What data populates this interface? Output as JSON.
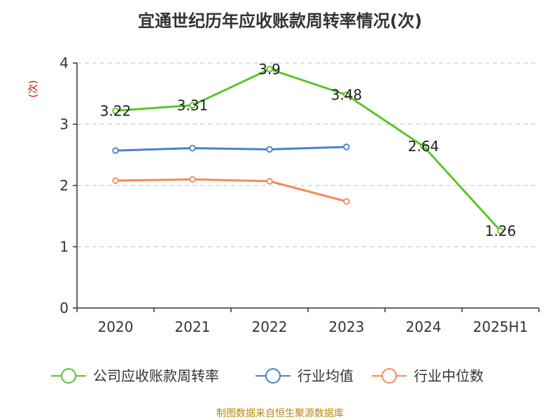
{
  "chart_data": {
    "type": "line",
    "title": "宜通世纪历年应收账款周转率情况(次)",
    "ylabel": "(次)",
    "xlabel": "",
    "categories": [
      "2020",
      "2021",
      "2022",
      "2023",
      "2024",
      "2025H1"
    ],
    "ylim": [
      0,
      4
    ],
    "yticks": [
      0,
      1,
      2,
      3,
      4
    ],
    "grid": "horizontal-dashed",
    "legend_position": "bottom",
    "series": [
      {
        "name": "公司应收账款周转率",
        "color": "#5cc42a",
        "values": [
          3.22,
          3.31,
          3.9,
          3.48,
          2.64,
          1.26
        ],
        "labels": [
          "3.22",
          "3.31",
          "3.9",
          "3.48",
          "2.64",
          "1.26"
        ]
      },
      {
        "name": "行业均值",
        "color": "#4a7fd4",
        "values": [
          2.57,
          2.61,
          2.59,
          2.63,
          null,
          null
        ]
      },
      {
        "name": "行业中位数",
        "color": "#f28c58",
        "values": [
          2.08,
          2.1,
          2.07,
          1.74,
          null,
          null
        ]
      }
    ]
  },
  "source": "制图数据来自恒生聚源数据库"
}
